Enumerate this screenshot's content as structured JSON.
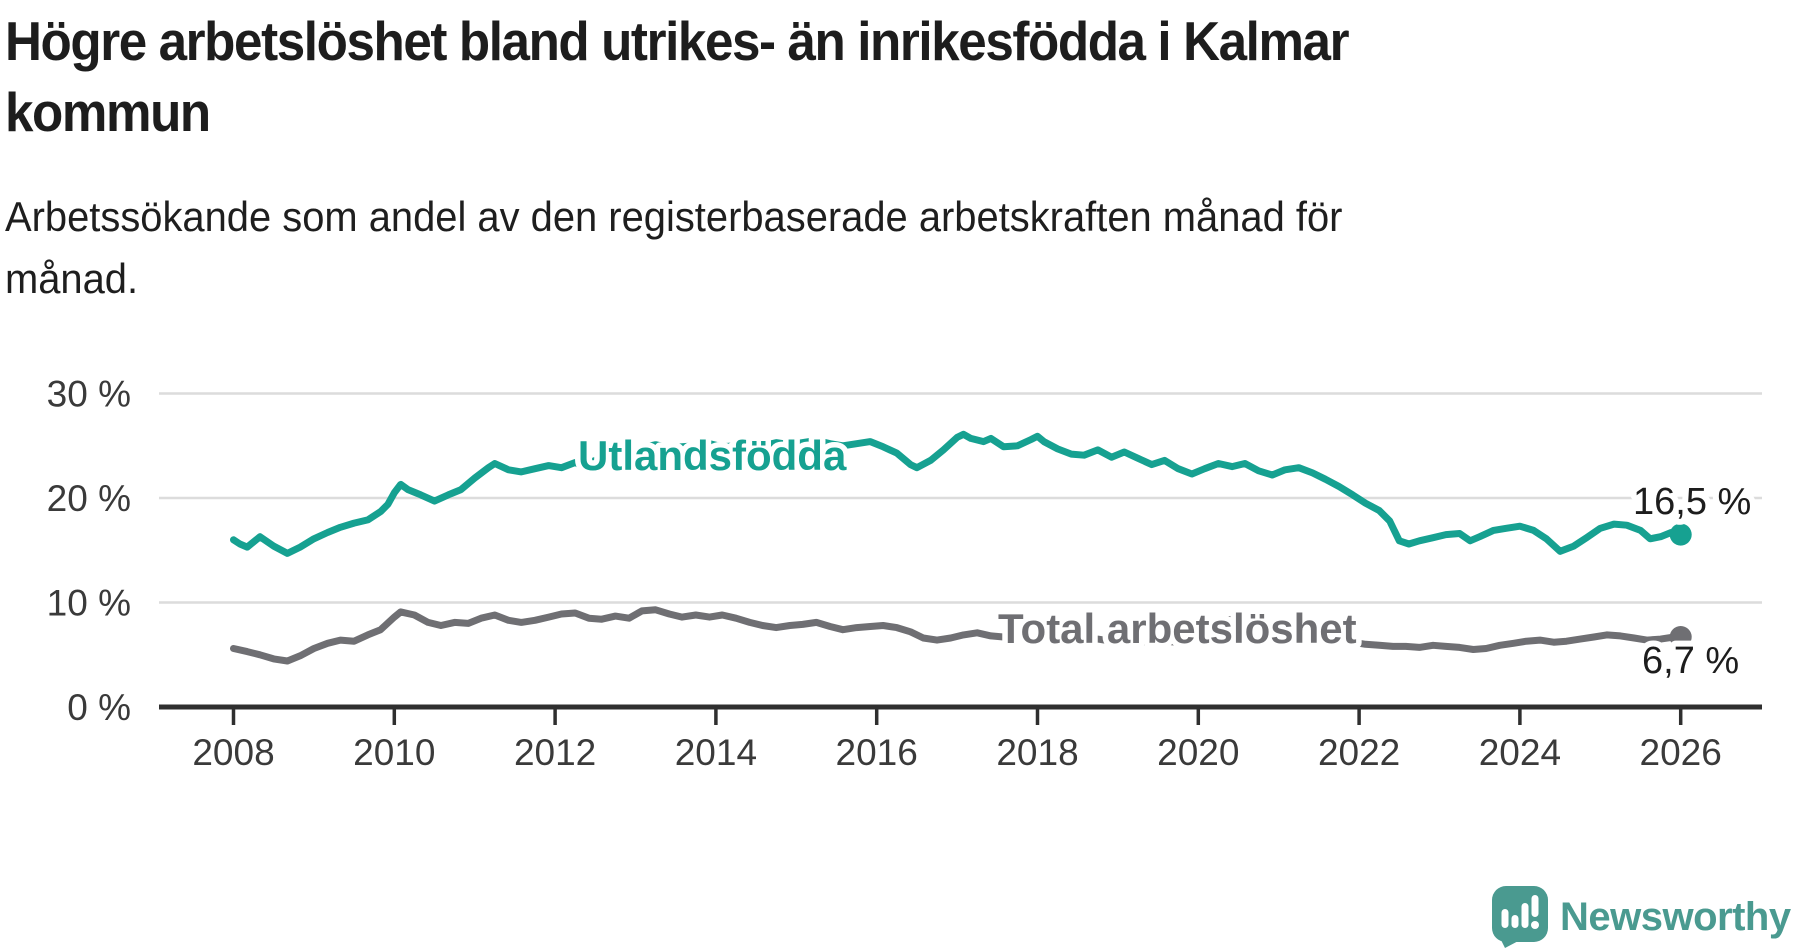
{
  "header": {
    "title_line1": "Högre arbetslöshet bland utrikes- än inrikesfödda i Kalmar",
    "title_line2": "kommun",
    "subtitle_line1": "Arbetssökande som andel av den registerbaserade arbetskraften månad för",
    "subtitle_line2": "månad."
  },
  "footer": {
    "brand": "Newsworthy",
    "logo_icon": "newsworthy-speech-bubble-barchart-icon",
    "brand_color": "#4a9a90"
  },
  "colors": {
    "accent_teal": "#16a191",
    "series_gray": "#6f6f73",
    "text": "#1d1d1d",
    "axis_text": "#3a3a3a",
    "gridline": "#dcdcdc",
    "axis_line": "#2f2f2f",
    "background": "#ffffff"
  },
  "chart_data": {
    "type": "line",
    "title": "Högre arbetslöshet bland utrikes- än inrikesfödda i Kalmar kommun",
    "subtitle": "Arbetssökande som andel av den registerbaserade arbetskraften månad för månad.",
    "unit": "%",
    "grid": "horizontal",
    "legend_position": "inline-labels",
    "x_range": [
      2008,
      2026.3
    ],
    "y_range": [
      0,
      32
    ],
    "x_ticks": [
      {
        "year": 2008,
        "label": "2008"
      },
      {
        "year": 2010,
        "label": "2010"
      },
      {
        "year": 2012,
        "label": "2012"
      },
      {
        "year": 2014,
        "label": "2014"
      },
      {
        "year": 2016,
        "label": "2016"
      },
      {
        "year": 2018,
        "label": "2018"
      },
      {
        "year": 2020,
        "label": "2020"
      },
      {
        "year": 2022,
        "label": "2022"
      },
      {
        "year": 2024,
        "label": "2024"
      },
      {
        "year": 2026,
        "label": "2026"
      }
    ],
    "y_ticks": [
      {
        "value": 0,
        "label": "0 %"
      },
      {
        "value": 10,
        "label": "10 %"
      },
      {
        "value": 20,
        "label": "20 %"
      },
      {
        "value": 30,
        "label": "30 %"
      }
    ],
    "series": [
      {
        "name": "Utlandsfödda",
        "label": "Utlandsfödda",
        "color": "#16a191",
        "end_label": "16,5 %",
        "last_value": 16.5,
        "points": [
          [
            2008.0,
            16.0
          ],
          [
            2008.08,
            15.6
          ],
          [
            2008.17,
            15.3
          ],
          [
            2008.33,
            16.3
          ],
          [
            2008.5,
            15.4
          ],
          [
            2008.67,
            14.7
          ],
          [
            2008.83,
            15.3
          ],
          [
            2009.0,
            16.1
          ],
          [
            2009.17,
            16.7
          ],
          [
            2009.33,
            17.2
          ],
          [
            2009.5,
            17.6
          ],
          [
            2009.67,
            17.9
          ],
          [
            2009.83,
            18.7
          ],
          [
            2009.92,
            19.4
          ],
          [
            2010.0,
            20.5
          ],
          [
            2010.08,
            21.3
          ],
          [
            2010.17,
            20.8
          ],
          [
            2010.33,
            20.3
          ],
          [
            2010.5,
            19.7
          ],
          [
            2010.67,
            20.3
          ],
          [
            2010.83,
            20.8
          ],
          [
            2011.0,
            21.9
          ],
          [
            2011.17,
            22.9
          ],
          [
            2011.25,
            23.3
          ],
          [
            2011.42,
            22.7
          ],
          [
            2011.58,
            22.5
          ],
          [
            2011.75,
            22.8
          ],
          [
            2011.92,
            23.1
          ],
          [
            2012.08,
            22.9
          ],
          [
            2012.25,
            23.4
          ],
          [
            2012.33,
            23.1
          ],
          [
            2012.5,
            23.6
          ],
          [
            2012.58,
            23.3
          ],
          [
            2012.75,
            23.9
          ],
          [
            2012.92,
            24.3
          ],
          [
            2013.08,
            24.8
          ],
          [
            2013.25,
            25.1
          ],
          [
            2013.42,
            24.8
          ],
          [
            2013.58,
            24.9
          ],
          [
            2013.75,
            25.0
          ],
          [
            2013.92,
            25.2
          ],
          [
            2014.08,
            24.9
          ],
          [
            2014.25,
            25.0
          ],
          [
            2014.42,
            25.2
          ],
          [
            2014.58,
            25.0
          ],
          [
            2014.75,
            25.3
          ],
          [
            2014.92,
            25.1
          ],
          [
            2015.08,
            25.3
          ],
          [
            2015.25,
            25.5
          ],
          [
            2015.42,
            25.2
          ],
          [
            2015.58,
            25.0
          ],
          [
            2015.75,
            25.2
          ],
          [
            2015.92,
            25.4
          ],
          [
            2016.08,
            24.9
          ],
          [
            2016.25,
            24.3
          ],
          [
            2016.42,
            23.2
          ],
          [
            2016.5,
            22.9
          ],
          [
            2016.67,
            23.6
          ],
          [
            2016.83,
            24.6
          ],
          [
            2017.0,
            25.8
          ],
          [
            2017.08,
            26.1
          ],
          [
            2017.17,
            25.7
          ],
          [
            2017.33,
            25.4
          ],
          [
            2017.42,
            25.7
          ],
          [
            2017.58,
            24.9
          ],
          [
            2017.75,
            25.0
          ],
          [
            2017.92,
            25.6
          ],
          [
            2018.0,
            25.9
          ],
          [
            2018.08,
            25.4
          ],
          [
            2018.25,
            24.7
          ],
          [
            2018.42,
            24.2
          ],
          [
            2018.58,
            24.1
          ],
          [
            2018.75,
            24.6
          ],
          [
            2018.92,
            23.9
          ],
          [
            2019.08,
            24.4
          ],
          [
            2019.25,
            23.8
          ],
          [
            2019.42,
            23.2
          ],
          [
            2019.58,
            23.6
          ],
          [
            2019.75,
            22.8
          ],
          [
            2019.92,
            22.3
          ],
          [
            2020.08,
            22.8
          ],
          [
            2020.25,
            23.3
          ],
          [
            2020.42,
            23.0
          ],
          [
            2020.58,
            23.3
          ],
          [
            2020.75,
            22.6
          ],
          [
            2020.92,
            22.2
          ],
          [
            2021.08,
            22.7
          ],
          [
            2021.25,
            22.9
          ],
          [
            2021.42,
            22.4
          ],
          [
            2021.58,
            21.8
          ],
          [
            2021.75,
            21.1
          ],
          [
            2021.92,
            20.3
          ],
          [
            2022.08,
            19.5
          ],
          [
            2022.25,
            18.8
          ],
          [
            2022.38,
            17.8
          ],
          [
            2022.5,
            15.9
          ],
          [
            2022.62,
            15.6
          ],
          [
            2022.75,
            15.9
          ],
          [
            2022.92,
            16.2
          ],
          [
            2023.08,
            16.5
          ],
          [
            2023.25,
            16.6
          ],
          [
            2023.38,
            15.9
          ],
          [
            2023.5,
            16.3
          ],
          [
            2023.67,
            16.9
          ],
          [
            2023.83,
            17.1
          ],
          [
            2024.0,
            17.3
          ],
          [
            2024.17,
            16.9
          ],
          [
            2024.33,
            16.1
          ],
          [
            2024.5,
            14.9
          ],
          [
            2024.67,
            15.4
          ],
          [
            2024.83,
            16.2
          ],
          [
            2025.0,
            17.1
          ],
          [
            2025.17,
            17.5
          ],
          [
            2025.33,
            17.4
          ],
          [
            2025.5,
            16.9
          ],
          [
            2025.62,
            16.1
          ],
          [
            2025.75,
            16.3
          ],
          [
            2025.88,
            16.7
          ],
          [
            2026.0,
            16.5
          ]
        ]
      },
      {
        "name": "Total arbetslöshet",
        "label": "Total arbetslöshet",
        "color": "#6f6f73",
        "end_label": "6,7 %",
        "last_value": 6.7,
        "points": [
          [
            2008.0,
            5.6
          ],
          [
            2008.17,
            5.3
          ],
          [
            2008.33,
            5.0
          ],
          [
            2008.5,
            4.6
          ],
          [
            2008.67,
            4.4
          ],
          [
            2008.83,
            4.9
          ],
          [
            2009.0,
            5.6
          ],
          [
            2009.17,
            6.1
          ],
          [
            2009.33,
            6.4
          ],
          [
            2009.5,
            6.3
          ],
          [
            2009.67,
            6.9
          ],
          [
            2009.83,
            7.4
          ],
          [
            2010.0,
            8.6
          ],
          [
            2010.08,
            9.1
          ],
          [
            2010.25,
            8.8
          ],
          [
            2010.42,
            8.1
          ],
          [
            2010.58,
            7.8
          ],
          [
            2010.75,
            8.1
          ],
          [
            2010.92,
            8.0
          ],
          [
            2011.08,
            8.5
          ],
          [
            2011.25,
            8.8
          ],
          [
            2011.42,
            8.3
          ],
          [
            2011.58,
            8.1
          ],
          [
            2011.75,
            8.3
          ],
          [
            2011.92,
            8.6
          ],
          [
            2012.08,
            8.9
          ],
          [
            2012.25,
            9.0
          ],
          [
            2012.42,
            8.5
          ],
          [
            2012.58,
            8.4
          ],
          [
            2012.75,
            8.7
          ],
          [
            2012.92,
            8.5
          ],
          [
            2013.08,
            9.2
          ],
          [
            2013.25,
            9.3
          ],
          [
            2013.42,
            8.9
          ],
          [
            2013.58,
            8.6
          ],
          [
            2013.75,
            8.8
          ],
          [
            2013.92,
            8.6
          ],
          [
            2014.08,
            8.8
          ],
          [
            2014.25,
            8.5
          ],
          [
            2014.42,
            8.1
          ],
          [
            2014.58,
            7.8
          ],
          [
            2014.75,
            7.6
          ],
          [
            2014.92,
            7.8
          ],
          [
            2015.08,
            7.9
          ],
          [
            2015.25,
            8.1
          ],
          [
            2015.42,
            7.7
          ],
          [
            2015.58,
            7.4
          ],
          [
            2015.75,
            7.6
          ],
          [
            2015.92,
            7.7
          ],
          [
            2016.08,
            7.8
          ],
          [
            2016.25,
            7.6
          ],
          [
            2016.42,
            7.2
          ],
          [
            2016.58,
            6.6
          ],
          [
            2016.75,
            6.4
          ],
          [
            2016.92,
            6.6
          ],
          [
            2017.08,
            6.9
          ],
          [
            2017.25,
            7.1
          ],
          [
            2017.42,
            6.8
          ],
          [
            2017.58,
            6.7
          ],
          [
            2017.75,
            6.9
          ],
          [
            2017.92,
            7.1
          ],
          [
            2018.08,
            7.0
          ],
          [
            2018.25,
            6.8
          ],
          [
            2018.42,
            6.6
          ],
          [
            2018.58,
            6.4
          ],
          [
            2018.75,
            6.5
          ],
          [
            2018.92,
            6.3
          ],
          [
            2019.08,
            6.5
          ],
          [
            2019.25,
            6.3
          ],
          [
            2019.42,
            6.2
          ],
          [
            2019.58,
            6.3
          ],
          [
            2019.75,
            6.2
          ],
          [
            2019.92,
            6.5
          ],
          [
            2020.08,
            7.0
          ],
          [
            2020.25,
            8.2
          ],
          [
            2020.42,
            8.4
          ],
          [
            2020.58,
            8.2
          ],
          [
            2020.75,
            7.9
          ],
          [
            2020.92,
            7.6
          ],
          [
            2021.08,
            7.4
          ],
          [
            2021.25,
            7.2
          ],
          [
            2021.42,
            6.9
          ],
          [
            2021.58,
            6.7
          ],
          [
            2021.75,
            6.4
          ],
          [
            2021.92,
            6.2
          ],
          [
            2022.08,
            6.0
          ],
          [
            2022.25,
            5.9
          ],
          [
            2022.42,
            5.8
          ],
          [
            2022.58,
            5.8
          ],
          [
            2022.75,
            5.7
          ],
          [
            2022.92,
            5.9
          ],
          [
            2023.08,
            5.8
          ],
          [
            2023.25,
            5.7
          ],
          [
            2023.42,
            5.5
          ],
          [
            2023.58,
            5.6
          ],
          [
            2023.75,
            5.9
          ],
          [
            2023.92,
            6.1
          ],
          [
            2024.08,
            6.3
          ],
          [
            2024.25,
            6.4
          ],
          [
            2024.42,
            6.2
          ],
          [
            2024.58,
            6.3
          ],
          [
            2024.75,
            6.5
          ],
          [
            2024.92,
            6.7
          ],
          [
            2025.08,
            6.9
          ],
          [
            2025.25,
            6.8
          ],
          [
            2025.42,
            6.6
          ],
          [
            2025.58,
            6.4
          ],
          [
            2025.75,
            6.5
          ],
          [
            2025.92,
            6.7
          ],
          [
            2026.0,
            6.7
          ]
        ]
      }
    ]
  }
}
